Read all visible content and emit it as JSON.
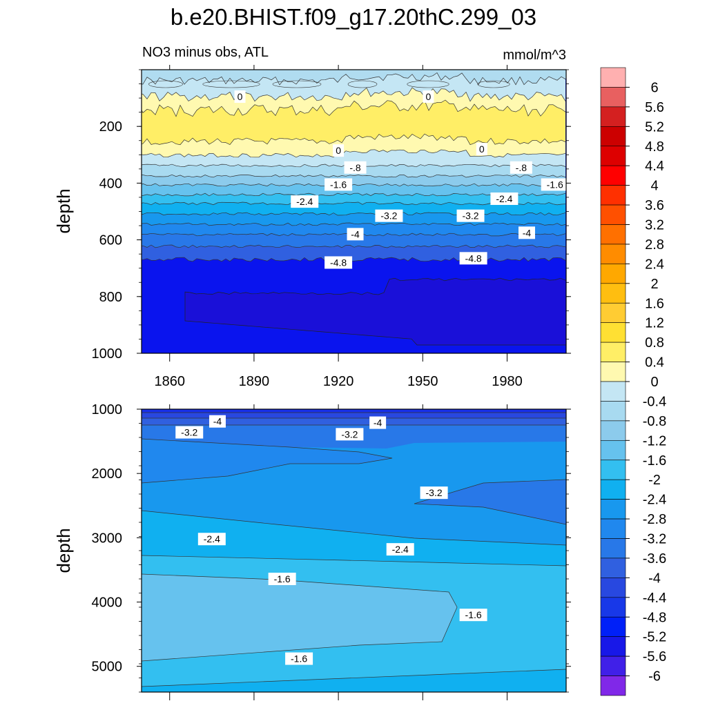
{
  "title": "b.e20.BHIST.f09_g17.20thC.299_03",
  "subtitle_left": "NO3 minus obs, ATL",
  "subtitle_right": "mmol/m^3",
  "chart_data": [
    {
      "type": "contour",
      "panel": "upper",
      "ylabel": "depth",
      "xlim": [
        1850,
        2001
      ],
      "ylim": [
        0,
        1000
      ],
      "y_reversed": true,
      "xticks": [
        1860,
        1890,
        1920,
        1950,
        1980
      ],
      "yticks": [
        200,
        400,
        600,
        800,
        1000
      ],
      "contour_labels": [
        {
          "text": "0",
          "x": 1885,
          "y": 95
        },
        {
          "text": "0",
          "x": 1952,
          "y": 95
        },
        {
          "text": "0",
          "x": 1920,
          "y": 285
        },
        {
          "text": "0",
          "x": 1971,
          "y": 280
        },
        {
          "text": "-.8",
          "x": 1926,
          "y": 345
        },
        {
          "text": "-.8",
          "x": 1985,
          "y": 345
        },
        {
          "text": "-1.6",
          "x": 1920,
          "y": 405
        },
        {
          "text": "-1.6",
          "x": 1997,
          "y": 405
        },
        {
          "text": "-2.4",
          "x": 1908,
          "y": 465
        },
        {
          "text": "-2.4",
          "x": 1979,
          "y": 455
        },
        {
          "text": "-3.2",
          "x": 1938,
          "y": 515
        },
        {
          "text": "-3.2",
          "x": 1967,
          "y": 515
        },
        {
          "text": "-4",
          "x": 1926,
          "y": 580
        },
        {
          "text": "-4",
          "x": 1987,
          "y": 575
        },
        {
          "text": "-4.8",
          "x": 1920,
          "y": 680
        },
        {
          "text": "-4.8",
          "x": 1968,
          "y": 665
        }
      ]
    },
    {
      "type": "contour",
      "panel": "lower",
      "ylabel": "depth",
      "xlim": [
        1850,
        2001
      ],
      "ylim": [
        1000,
        5400
      ],
      "y_reversed": true,
      "yticks": [
        1000,
        2000,
        3000,
        4000,
        5000
      ],
      "contour_labels": [
        {
          "text": "-4",
          "x": 1877,
          "y": 1190
        },
        {
          "text": "-4",
          "x": 1934,
          "y": 1210
        },
        {
          "text": "-3.2",
          "x": 1867,
          "y": 1360
        },
        {
          "text": "-3.2",
          "x": 1924,
          "y": 1390
        },
        {
          "text": "-3.2",
          "x": 1954,
          "y": 2300
        },
        {
          "text": "-2.4",
          "x": 1875,
          "y": 3020
        },
        {
          "text": "-2.4",
          "x": 1942,
          "y": 3180
        },
        {
          "text": "-1.6",
          "x": 1900,
          "y": 3640
        },
        {
          "text": "-1.6",
          "x": 1968,
          "y": 4200
        },
        {
          "text": "-1.6",
          "x": 1906,
          "y": 4880
        }
      ]
    }
  ],
  "colorbar": {
    "labels": [
      "6",
      "5.6",
      "5.2",
      "4.8",
      "4.4",
      "4",
      "3.6",
      "3.2",
      "2.8",
      "2.4",
      "2",
      "1.6",
      "1.2",
      "0.8",
      "0.4",
      "0",
      "-0.4",
      "-0.8",
      "-1.2",
      "-1.6",
      "-2",
      "-2.4",
      "-2.8",
      "-3.2",
      "-3.6",
      "-4",
      "-4.4",
      "-4.8",
      "-5.2",
      "-5.6",
      "-6"
    ],
    "colors": [
      "#ffb0b0",
      "#e86060",
      "#d42020",
      "#cc0000",
      "#dd0000",
      "#ff0000",
      "#ff3000",
      "#ff5000",
      "#ff7000",
      "#ff8c00",
      "#ffa800",
      "#ffbe10",
      "#ffcc33",
      "#ffe033",
      "#ffee66",
      "#fff9b0",
      "#c4e6f4",
      "#a8daf0",
      "#8ccbec",
      "#66c2ee",
      "#33bff0",
      "#10b0f0",
      "#1898ee",
      "#2088ee",
      "#2878e8",
      "#3060e0",
      "#2848e0",
      "#1838e8",
      "#0020f8",
      "#1818e8",
      "#4020e8",
      "#8028e8"
    ]
  },
  "colors": {
    "upper_levels": [
      "#c4e6f4",
      "#fff9b0",
      "#ffee66",
      "#fff9b0",
      "#c4e6f4",
      "#a8daf0",
      "#8ccbec",
      "#66c2ee",
      "#33bff0",
      "#10b0f0",
      "#1898ee",
      "#2088ee",
      "#2878e8",
      "#3060e0",
      "#2848e0",
      "#1838e8",
      "#0020f8",
      "#1818e8"
    ],
    "lower_levels": [
      "#2848e0",
      "#3060e0",
      "#2878e8",
      "#2088ee",
      "#1898ee",
      "#10b0f0",
      "#33bff0",
      "#66c2ee",
      "#33bff0",
      "#10b0f0"
    ]
  }
}
